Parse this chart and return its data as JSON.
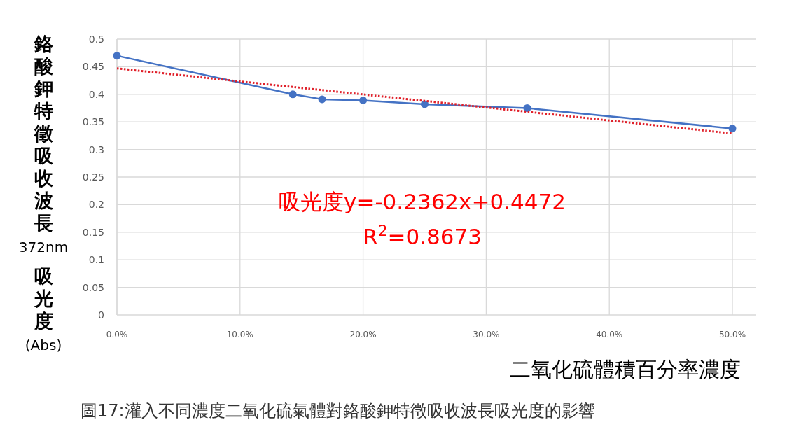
{
  "chart_data": {
    "type": "line",
    "xlabel": "二氧化硫體積百分率濃度",
    "ylabel": "鉻酸鉀特徵吸收波長372nm吸光度(Abs)",
    "annotations": [
      "吸光度y=-0.2362x+0.4472",
      "R$^{2}$=0.8673",
      "圖17:灌入不同濃度二氧化硫氣體對鉻酸鉀特徵吸收波長吸光度的影響"
    ],
    "series": [
      {
        "color": "#4472c4",
        "marker": "circle",
        "line_style": "solid",
        "x": [
          0,
          0.1429,
          0.1667,
          0.2,
          0.25,
          0.3333,
          0.5
        ],
        "values": [
          0.47,
          0.4,
          0.391,
          0.389,
          0.382,
          0.375,
          0.338
        ]
      },
      {
        "type": "line",
        "color": "#e0202a",
        "marker": "none",
        "line_style": "dotted",
        "x": [
          0,
          0.5
        ],
        "values": [
          0.447,
          0.329
        ]
      }
    ],
    "xlim": [
      0,
      0.5
    ],
    "ylim": [
      0,
      0.5
    ],
    "xticks": [
      {
        "value": 0,
        "label": "0.0%"
      },
      {
        "value": 0.1,
        "label": "10.0%"
      },
      {
        "value": 0.2,
        "label": "20.0%"
      },
      {
        "value": 0.3,
        "label": "30.0%"
      },
      {
        "value": 0.4,
        "label": "40.0%"
      },
      {
        "value": 0.5,
        "label": "50.0%"
      }
    ],
    "yticks": [
      0,
      0.05,
      0.1,
      0.15,
      0.2,
      0.25,
      0.3,
      0.35,
      0.4,
      0.45,
      0.5
    ],
    "grid": true
  }
}
